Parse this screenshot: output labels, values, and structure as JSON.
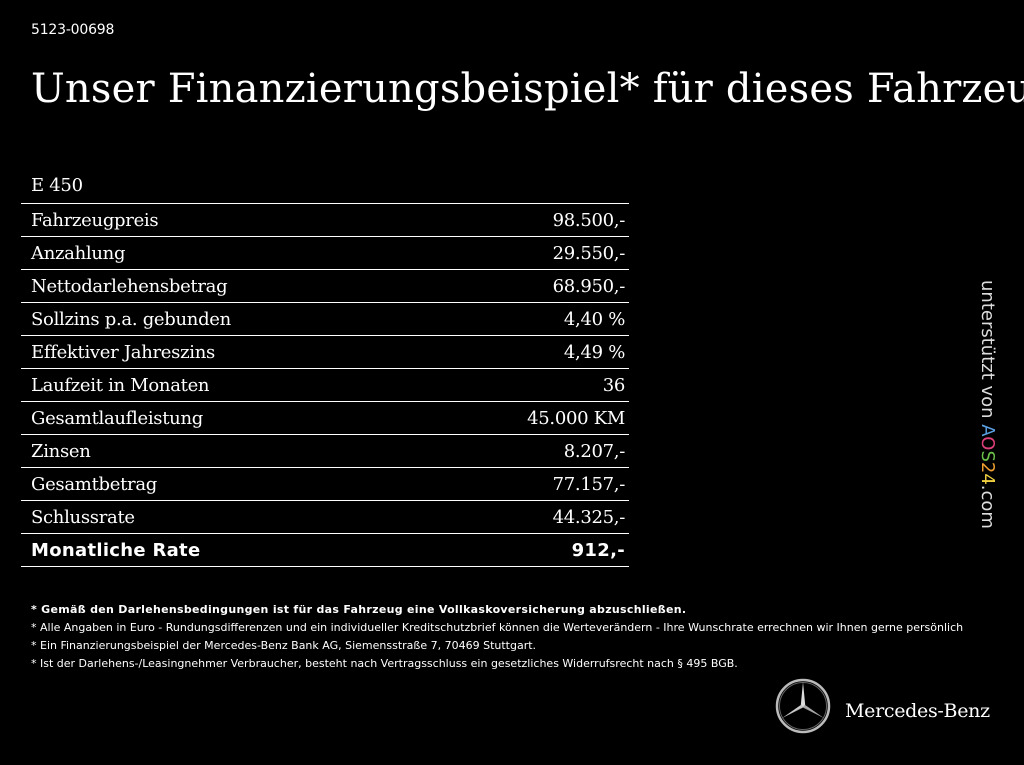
{
  "reference": "5123-00698",
  "title": "Unser Finanzierungsbeispiel* für dieses Fahrzeug:",
  "model": "E 450",
  "rows": [
    {
      "label": "Fahrzeugpreis",
      "value": "98.500,-"
    },
    {
      "label": "Anzahlung",
      "value": "29.550,-"
    },
    {
      "label": "Nettodarlehensbetrag",
      "value": "68.950,-"
    },
    {
      "label": "Sollzins p.a. gebunden",
      "value": "4,40 %"
    },
    {
      "label": "Effektiver Jahreszins",
      "value": "4,49 %"
    },
    {
      "label": "Laufzeit in Monaten",
      "value": "36"
    },
    {
      "label": "Gesamtlaufleistung",
      "value": "45.000 KM"
    },
    {
      "label": "Zinsen",
      "value": "8.207,-"
    },
    {
      "label": "Gesamtbetrag",
      "value": "77.157,-"
    },
    {
      "label": "Schlussrate",
      "value": "44.325,-"
    }
  ],
  "total": {
    "label": "Monatliche Rate",
    "value": "912,-"
  },
  "footnotes": [
    "* Gemäß den Darlehensbedingungen ist für das Fahrzeug eine Vollkaskoversicherung abzuschließen.",
    "* Alle Angaben in Euro - Rundungsdifferenzen und ein individueller Kreditschutzbrief können die Werteverändern - Ihre Wunschrate errechnen wir Ihnen gerne persönlich",
    "* Ein Finanzierungsbeispiel der Mercedes-Benz Bank AG, Siemensstraße 7, 70469 Stuttgart.",
    "* Ist der Darlehens-/Leasingnehmer Verbraucher, besteht nach Vertragsschluss ein gesetzliches Widerrufsrecht nach § 495 BGB."
  ],
  "sidebar": {
    "prefix": "unterstützt von ",
    "brand_letters": [
      "A",
      "O",
      "S",
      "2",
      "4"
    ],
    "suffix": ".com"
  },
  "brand": {
    "name": "Mercedes-Benz",
    "logo_icon": "mercedes-star-icon"
  }
}
